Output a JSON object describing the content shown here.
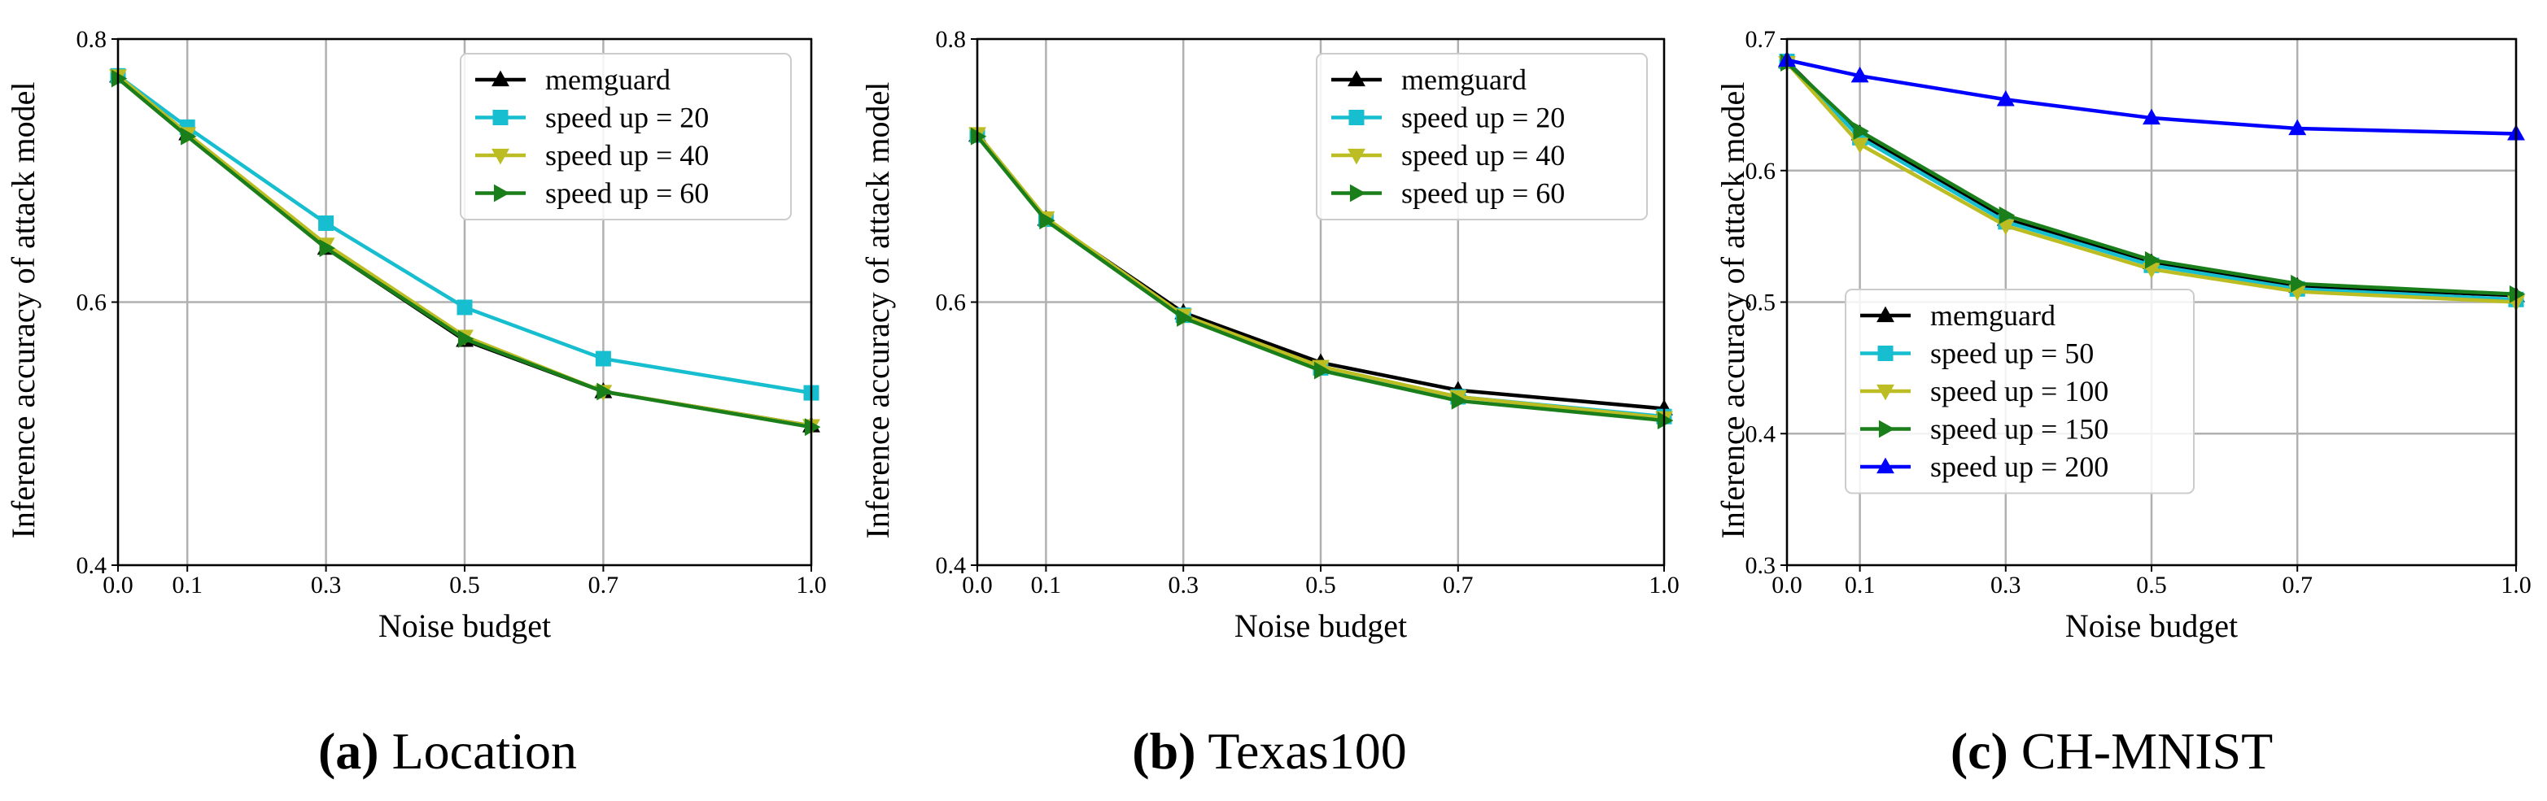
{
  "colors": {
    "memguard": "#000000",
    "speed_cyan": "#17becf",
    "speed_olive": "#bcbd22",
    "speed_green": "#1a7f1a",
    "speed_blue": "#0000ff",
    "grid": "#b0b0b0"
  },
  "captions": [
    {
      "letter": "(a)",
      "name": " Location"
    },
    {
      "letter": "(b)",
      "name": " Texas100"
    },
    {
      "letter": "(c)",
      "name": " CH-MNIST"
    }
  ],
  "chart_data": [
    {
      "type": "line",
      "title": "(a) Location",
      "xlabel": "Noise budget",
      "ylabel": "Inference accuracy of attack model",
      "x": [
        0.0,
        0.1,
        0.3,
        0.5,
        0.7,
        1.0
      ],
      "x_ticks": [
        "0.0",
        "0.1",
        "0.3",
        "0.5",
        "0.7",
        "1.0"
      ],
      "y_ticks": [
        "0.4",
        "0.6",
        "0.8"
      ],
      "xlim": [
        0.0,
        1.0
      ],
      "ylim": [
        0.4,
        0.8
      ],
      "grid": true,
      "legend_position": "top-right",
      "series": [
        {
          "name": "memguard",
          "marker": "triangle-up",
          "color": "#000000",
          "values": [
            0.772,
            0.728,
            0.641,
            0.571,
            0.532,
            0.506
          ]
        },
        {
          "name": "speed up = 20",
          "marker": "square",
          "color": "#17becf",
          "values": [
            0.772,
            0.733,
            0.66,
            0.596,
            0.557,
            0.531
          ]
        },
        {
          "name": "speed up = 40",
          "marker": "triangle-down",
          "color": "#bcbd22",
          "values": [
            0.772,
            0.728,
            0.644,
            0.574,
            0.532,
            0.506
          ]
        },
        {
          "name": "speed up = 60",
          "marker": "triangle-right",
          "color": "#1a7f1a",
          "values": [
            0.77,
            0.726,
            0.641,
            0.572,
            0.532,
            0.505
          ]
        }
      ]
    },
    {
      "type": "line",
      "title": "(b) Texas100",
      "xlabel": "Noise budget",
      "ylabel": "Inference accuracy of attack model",
      "x": [
        0.0,
        0.1,
        0.3,
        0.5,
        0.7,
        1.0
      ],
      "x_ticks": [
        "0.0",
        "0.1",
        "0.3",
        "0.5",
        "0.7",
        "1.0"
      ],
      "y_ticks": [
        "0.4",
        "0.6",
        "0.8"
      ],
      "xlim": [
        0.0,
        1.0
      ],
      "ylim": [
        0.4,
        0.8
      ],
      "grid": true,
      "legend_position": "top-right",
      "series": [
        {
          "name": "memguard",
          "marker": "triangle-up",
          "color": "#000000",
          "values": [
            0.727,
            0.663,
            0.592,
            0.554,
            0.533,
            0.519
          ]
        },
        {
          "name": "speed up = 20",
          "marker": "square",
          "color": "#17becf",
          "values": [
            0.727,
            0.663,
            0.59,
            0.55,
            0.528,
            0.513
          ]
        },
        {
          "name": "speed up = 40",
          "marker": "triangle-down",
          "color": "#bcbd22",
          "values": [
            0.728,
            0.664,
            0.59,
            0.551,
            0.528,
            0.512
          ]
        },
        {
          "name": "speed up = 60",
          "marker": "triangle-right",
          "color": "#1a7f1a",
          "values": [
            0.726,
            0.662,
            0.588,
            0.548,
            0.525,
            0.51
          ]
        }
      ]
    },
    {
      "type": "line",
      "title": "(c) CH-MNIST",
      "xlabel": "Noise budget",
      "ylabel": "Inference accuracy of attack model",
      "x": [
        0.0,
        0.1,
        0.3,
        0.5,
        0.7,
        1.0
      ],
      "x_ticks": [
        "0.0",
        "0.1",
        "0.3",
        "0.5",
        "0.7",
        "1.0"
      ],
      "y_ticks": [
        "0.3",
        "0.4",
        "0.5",
        "0.6",
        "0.7"
      ],
      "xlim": [
        0.0,
        1.0
      ],
      "ylim": [
        0.3,
        0.7
      ],
      "grid": true,
      "legend_position": "bottom-left",
      "series": [
        {
          "name": "memguard",
          "marker": "triangle-up",
          "color": "#000000",
          "values": [
            0.683,
            0.628,
            0.563,
            0.53,
            0.512,
            0.505
          ]
        },
        {
          "name": "speed up = 50",
          "marker": "square",
          "color": "#17becf",
          "values": [
            0.683,
            0.625,
            0.561,
            0.528,
            0.51,
            0.502
          ]
        },
        {
          "name": "speed up = 100",
          "marker": "triangle-down",
          "color": "#bcbd22",
          "values": [
            0.682,
            0.62,
            0.558,
            0.525,
            0.508,
            0.5
          ]
        },
        {
          "name": "speed up = 150",
          "marker": "triangle-right",
          "color": "#1a7f1a",
          "values": [
            0.682,
            0.63,
            0.566,
            0.532,
            0.514,
            0.506
          ]
        },
        {
          "name": "speed up = 200",
          "marker": "triangle-up",
          "color": "#0000ff",
          "values": [
            0.684,
            0.672,
            0.654,
            0.64,
            0.632,
            0.628
          ]
        }
      ]
    }
  ]
}
